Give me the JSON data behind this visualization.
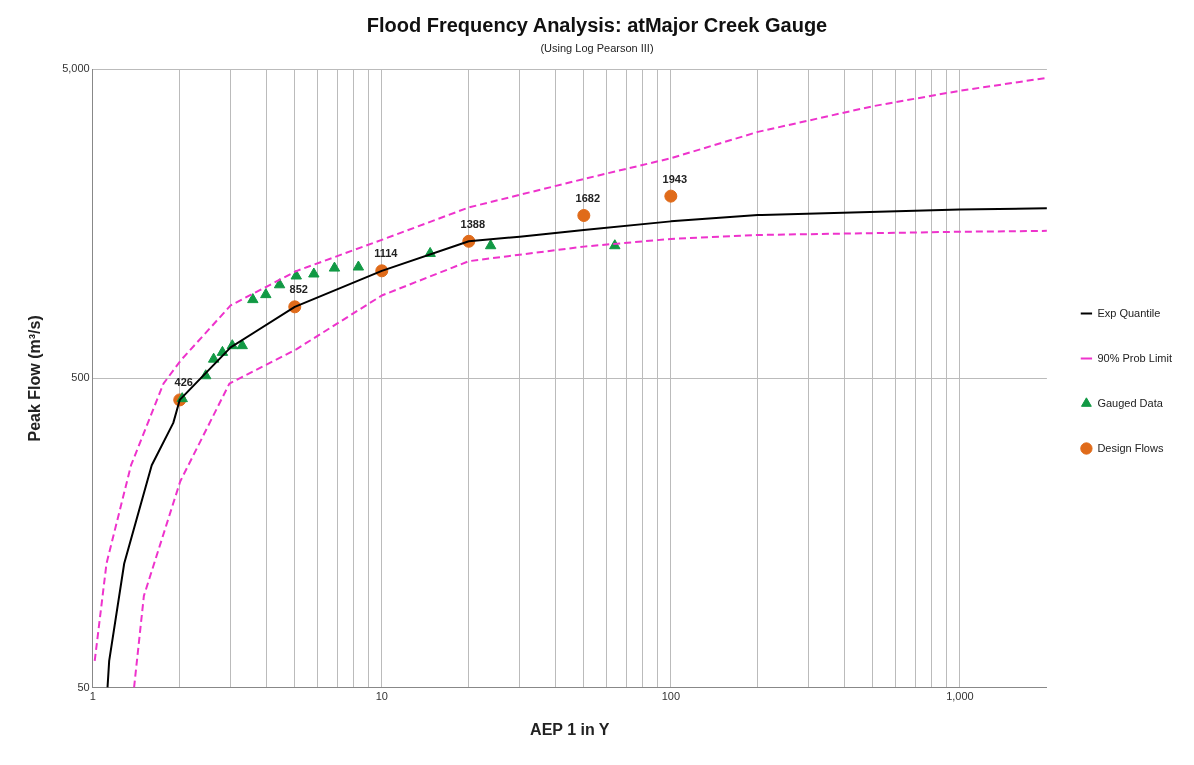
{
  "chart_data": {
    "type": "line",
    "title": "Flood Frequency Analysis: atMajor Creek Gauge",
    "subtitle": "(Using Log Pearson III)",
    "xlabel": "AEP 1 in Y",
    "ylabel": "Peak Flow (m³/s)",
    "log": "xy",
    "grid": true,
    "legend": "right",
    "xlim": [
      1,
      2000
    ],
    "ylim": [
      50,
      5000
    ],
    "xticks": [
      1,
      {
        "value": 2,
        "label": null
      },
      {
        "value": 3,
        "label": null
      },
      {
        "value": 4,
        "label": null
      },
      {
        "value": 5,
        "label": null
      },
      {
        "value": 6,
        "label": null
      },
      {
        "value": 7,
        "label": null
      },
      {
        "value": 8,
        "label": null
      },
      {
        "value": 9,
        "label": null
      },
      10,
      {
        "value": 20,
        "label": null
      },
      {
        "value": 30,
        "label": null
      },
      {
        "value": 40,
        "label": null
      },
      {
        "value": 50,
        "label": null
      },
      {
        "value": 60,
        "label": null
      },
      {
        "value": 70,
        "label": null
      },
      {
        "value": 80,
        "label": null
      },
      {
        "value": 90,
        "label": null
      },
      100,
      {
        "value": 200,
        "label": null
      },
      {
        "value": 300,
        "label": null
      },
      {
        "value": 400,
        "label": null
      },
      {
        "value": 500,
        "label": null
      },
      {
        "value": 600,
        "label": null
      },
      {
        "value": 700,
        "label": null
      },
      {
        "value": 800,
        "label": null
      },
      {
        "value": 900,
        "label": null
      },
      {
        "value": 1000,
        "label": "1,000"
      }
    ],
    "yticks": [
      50,
      500,
      {
        "value": 5000,
        "label": "5,000"
      }
    ],
    "series": [
      {
        "name": "Exp Quantile",
        "color": "#000000",
        "line_style": "solid",
        "marker": "none",
        "x": [
          1.125,
          1.14,
          1.285,
          1.6,
          1.9,
          2,
          3,
          5,
          10,
          20,
          30,
          50,
          100,
          200,
          1000,
          2000
        ],
        "values": [
          50,
          61,
          126,
          262,
          359,
          426,
          630,
          852,
          1114,
          1388,
          1436,
          1511,
          1610,
          1687,
          1760,
          1774
        ]
      },
      {
        "name": "90% Prob Limit",
        "color": "#ee33cc",
        "line_style": "dashed",
        "marker": "none",
        "x": [
          1.016,
          1.116,
          1.357,
          1.757,
          2.02,
          3,
          5.06,
          10,
          20,
          50,
          100,
          200,
          500,
          1000,
          2000
        ],
        "values": [
          61,
          126,
          262,
          481,
          573,
          861,
          1112,
          1403,
          1786,
          2208,
          2576,
          3135,
          3796,
          4259,
          4688
        ]
      },
      {
        "color": "#ee33cc",
        "line_style": "dashed",
        "marker": "none",
        "x": [
          1.39,
          1.503,
          2.007,
          2.97,
          5.06,
          10,
          20,
          50,
          100,
          200,
          1000,
          2000
        ],
        "values": [
          50,
          99,
          232,
          481,
          621,
          927,
          1197,
          1334,
          1413,
          1455,
          1490,
          1500
        ]
      },
      {
        "name": "Gauged Data",
        "type": "scatter",
        "color": "#119944",
        "marker": "triangle",
        "x": [
          2.04,
          2.46,
          2.62,
          2.81,
          3.04,
          3.29,
          3.58,
          3.97,
          4.43,
          5.06,
          5.82,
          6.86,
          8.3,
          14.7,
          23.8,
          64
        ],
        "values": [
          430,
          510,
          577,
          607,
          638,
          638,
          899,
          933,
          1004,
          1072,
          1088,
          1137,
          1146,
          1268,
          1343,
          1343
        ]
      },
      {
        "name": "Design Flows",
        "type": "scatter",
        "color": "#e06b1a",
        "marker": "circle",
        "x": [
          2,
          5,
          10,
          20,
          50,
          100
        ],
        "values": [
          426,
          852,
          1114,
          1388,
          1682,
          1943
        ],
        "value_labels": [
          "426",
          "852",
          "1114",
          "1388",
          "1682",
          "1943"
        ]
      }
    ]
  }
}
